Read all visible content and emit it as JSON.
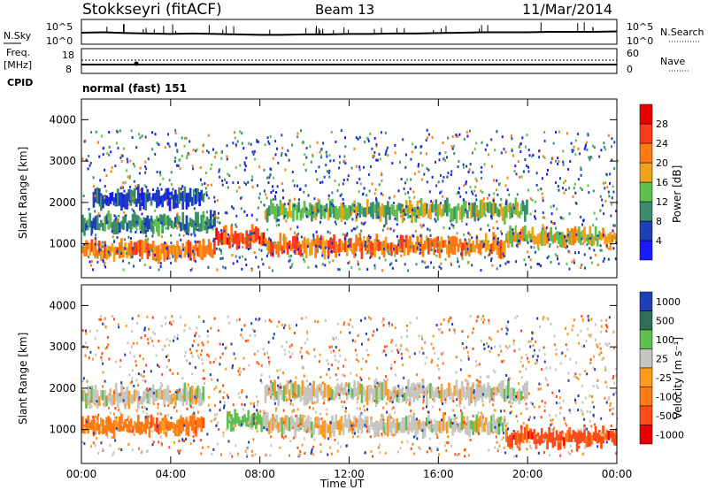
{
  "header": {
    "station": "Stokkseyri (fitACF)",
    "beam": "Beam 13",
    "date": "11/Mar/2014"
  },
  "noise_panel": {
    "left_label": "N.Sky",
    "right_label": "N.Search",
    "tick_top": "10^5",
    "tick_bottom": "10^0"
  },
  "freq_panel": {
    "left_label_1": "Freq.",
    "left_label_2": "[MHz]",
    "left_label_3": "CPID",
    "left_ticks": [
      "8",
      "18"
    ],
    "right_ticks": [
      "0",
      "60"
    ],
    "right_label": "Nave"
  },
  "cpid_text": "normal (fast) 151",
  "x_axis": {
    "label": "Time UT",
    "ticks": [
      "00:00",
      "04:00",
      "08:00",
      "12:00",
      "16:00",
      "20:00",
      "00:00"
    ]
  },
  "power_colorbar": {
    "title": "Power [dB]",
    "ticks": [
      "4",
      "8",
      "12",
      "16",
      "20",
      "24",
      "28"
    ],
    "colors": [
      "#1a1aff",
      "#1f3fb8",
      "#3c8c6c",
      "#5fbf4f",
      "#f0a21a",
      "#ff7a14",
      "#ff3a1a",
      "#e80000"
    ]
  },
  "velocity_colorbar": {
    "title": "Velocity [m s⁻¹]",
    "ticks": [
      "1000",
      "500",
      "100",
      "25",
      "-25",
      "-100",
      "-500",
      "-1000"
    ],
    "colors": [
      "#1f3fb8",
      "#2f6f5a",
      "#5fbf4f",
      "#c6c6be",
      "#ff9a1a",
      "#ff7a14",
      "#ff4a1a",
      "#e80000"
    ]
  },
  "chart_data": [
    {
      "type": "line",
      "title": "N.Sky / N.Search",
      "xlim": [
        "00:00",
        "24:00"
      ],
      "ylim_label": [
        "10^0",
        "10^5"
      ],
      "x": [
        0,
        1,
        2,
        3,
        4,
        5,
        6,
        7,
        8,
        9,
        10,
        11,
        12,
        13,
        14,
        15,
        16,
        17,
        18,
        19,
        20,
        21,
        22,
        23,
        24
      ],
      "values": [
        2.3,
        2.4,
        2.2,
        2.1,
        2.0,
        2.1,
        2.0,
        1.9,
        1.8,
        1.8,
        1.9,
        1.9,
        2.0,
        2.0,
        2.1,
        2.1,
        2.2,
        2.3,
        2.4,
        2.4,
        2.4,
        2.5,
        2.5,
        2.5,
        2.6
      ]
    },
    {
      "type": "heatmap",
      "title": "Power [dB]",
      "ylabel": "Slant Range [km]",
      "xlabel": "Time UT",
      "ylim": [
        180,
        4500
      ],
      "y_ticks": [
        1000,
        2000,
        3000,
        4000
      ],
      "bands": [
        {
          "t_start": 0.0,
          "t_end": 6.0,
          "range_km": 850,
          "level_db": 24
        },
        {
          "t_start": 0.0,
          "t_end": 6.0,
          "range_km": 1500,
          "level_db": 12
        },
        {
          "t_start": 0.5,
          "t_end": 5.5,
          "range_km": 2100,
          "level_db": 8
        },
        {
          "t_start": 6.0,
          "t_end": 8.2,
          "range_km": 1150,
          "level_db": 26
        },
        {
          "t_start": 8.2,
          "t_end": 19.0,
          "range_km": 950,
          "level_db": 24
        },
        {
          "t_start": 8.2,
          "t_end": 20.0,
          "range_km": 1800,
          "level_db": 16
        },
        {
          "t_start": 19.0,
          "t_end": 24.0,
          "range_km": 1150,
          "level_db": 20
        }
      ]
    },
    {
      "type": "heatmap",
      "title": "Velocity [m s⁻¹]",
      "ylabel": "Slant Range [km]",
      "xlabel": "Time UT",
      "ylim": [
        180,
        4500
      ],
      "y_ticks": [
        1000,
        2000,
        3000,
        4000
      ],
      "bands": [
        {
          "t_start": 0.0,
          "t_end": 5.5,
          "range_km": 1100,
          "velocity": -100
        },
        {
          "t_start": 0.0,
          "t_end": 5.5,
          "range_km": 1800,
          "velocity": 0
        },
        {
          "t_start": 6.5,
          "t_end": 8.2,
          "range_km": 1200,
          "velocity": 100
        },
        {
          "t_start": 8.2,
          "t_end": 19.0,
          "range_km": 1100,
          "velocity": 0
        },
        {
          "t_start": 8.2,
          "t_end": 20.0,
          "range_km": 1900,
          "velocity": 0
        },
        {
          "t_start": 19.0,
          "t_end": 24.0,
          "range_km": 800,
          "velocity": -500
        }
      ]
    }
  ]
}
